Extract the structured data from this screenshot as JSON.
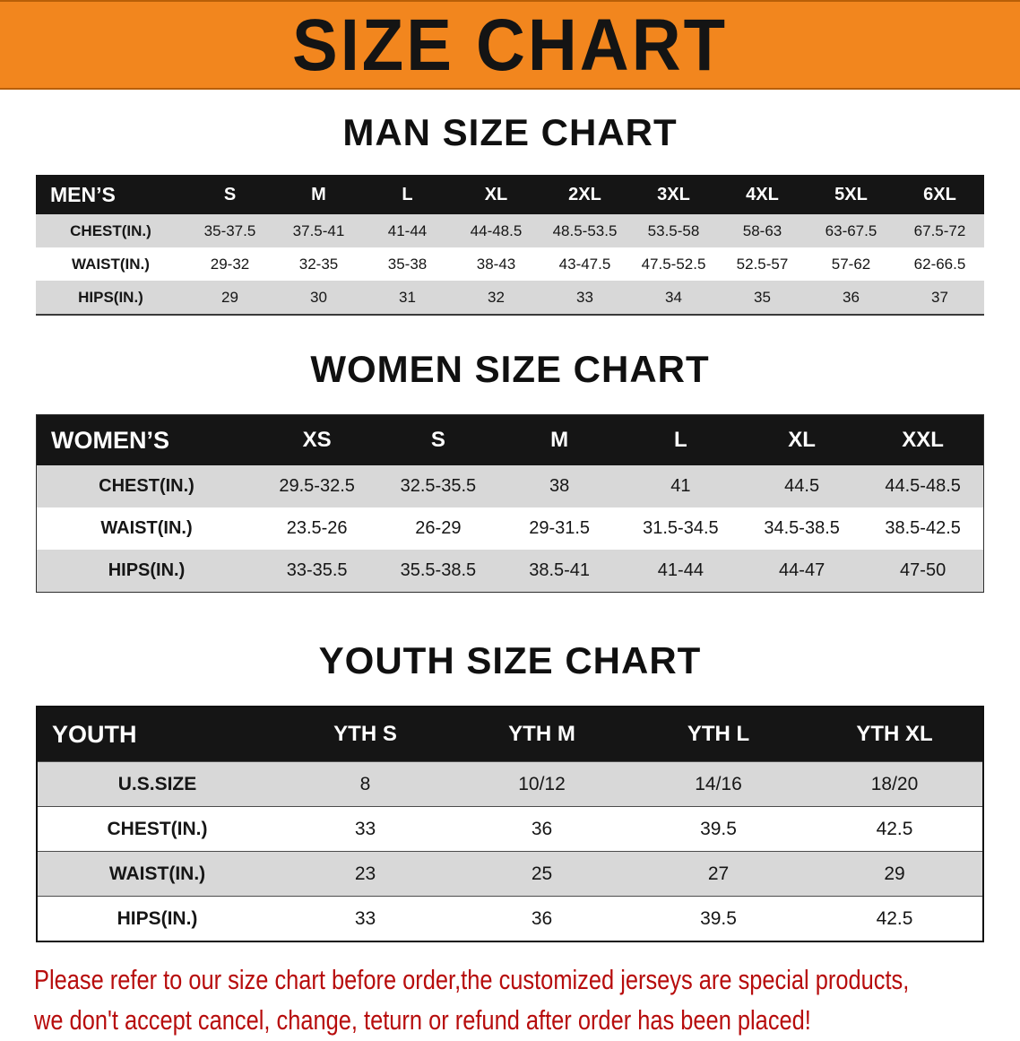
{
  "banner": {
    "title": "SIZE CHART"
  },
  "colors": {
    "banner_bg": "#f2861e",
    "banner_text": "#141414",
    "table_header_bg": "#151515",
    "table_header_text": "#ffffff",
    "row_stripe": "#d8d8d8",
    "disclaimer_text": "#b70c0c"
  },
  "men": {
    "heading": "MAN SIZE CHART",
    "label": "MEN’S",
    "columns": [
      "S",
      "M",
      "L",
      "XL",
      "2XL",
      "3XL",
      "4XL",
      "5XL",
      "6XL"
    ],
    "rows": [
      {
        "label": "CHEST(IN.)",
        "values": [
          "35-37.5",
          "37.5-41",
          "41-44",
          "44-48.5",
          "48.5-53.5",
          "53.5-58",
          "58-63",
          "63-67.5",
          "67.5-72"
        ]
      },
      {
        "label": "WAIST(IN.)",
        "values": [
          "29-32",
          "32-35",
          "35-38",
          "38-43",
          "43-47.5",
          "47.5-52.5",
          "52.5-57",
          "57-62",
          "62-66.5"
        ]
      },
      {
        "label": "HIPS(IN.)",
        "values": [
          "29",
          "30",
          "31",
          "32",
          "33",
          "34",
          "35",
          "36",
          "37"
        ]
      }
    ]
  },
  "women": {
    "heading": "WOMEN SIZE CHART",
    "label": "WOMEN’S",
    "columns": [
      "XS",
      "S",
      "M",
      "L",
      "XL",
      "XXL"
    ],
    "rows": [
      {
        "label": "CHEST(IN.)",
        "values": [
          "29.5-32.5",
          "32.5-35.5",
          "38",
          "41",
          "44.5",
          "44.5-48.5"
        ]
      },
      {
        "label": "WAIST(IN.)",
        "values": [
          "23.5-26",
          "26-29",
          "29-31.5",
          "31.5-34.5",
          "34.5-38.5",
          "38.5-42.5"
        ]
      },
      {
        "label": "HIPS(IN.)",
        "values": [
          "33-35.5",
          "35.5-38.5",
          "38.5-41",
          "41-44",
          "44-47",
          "47-50"
        ]
      }
    ]
  },
  "youth": {
    "heading": "YOUTH SIZE CHART",
    "label": "YOUTH",
    "columns": [
      "YTH S",
      "YTH M",
      "YTH L",
      "YTH XL"
    ],
    "rows": [
      {
        "label": "U.S.SIZE",
        "values": [
          "8",
          "10/12",
          "14/16",
          "18/20"
        ]
      },
      {
        "label": "CHEST(IN.)",
        "values": [
          "33",
          "36",
          "39.5",
          "42.5"
        ]
      },
      {
        "label": "WAIST(IN.)",
        "values": [
          "23",
          "25",
          "27",
          "29"
        ]
      },
      {
        "label": "HIPS(IN.)",
        "values": [
          "33",
          "36",
          "39.5",
          "42.5"
        ]
      }
    ]
  },
  "disclaimer": {
    "line1": "Please refer to our size chart before order,the customized jerseys are special products,",
    "line2": "we don't accept cancel, change, teturn or refund after order has been placed!"
  }
}
